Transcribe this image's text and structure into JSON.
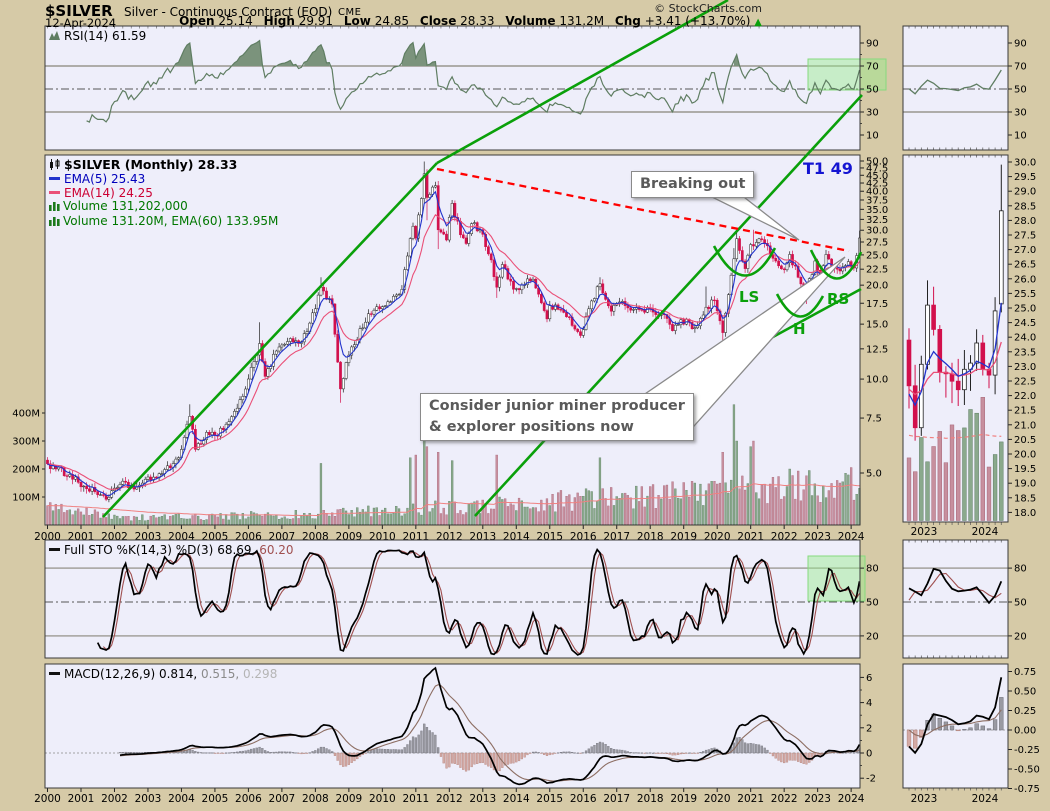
{
  "header": {
    "symbol": "$SILVER",
    "name": "Silver - Continuous Contract (EOD)",
    "exchange": "CME",
    "date": "12-Apr-2024",
    "copyright": "© StockCharts.com",
    "quote": {
      "open_label": "Open",
      "open": "25.14",
      "high_label": "High",
      "high": "29.91",
      "low_label": "Low",
      "low": "24.85",
      "close_label": "Close",
      "close": "28.33",
      "volume_label": "Volume",
      "volume": "131.2M",
      "chg_label": "Chg",
      "chg": "+3.41 (+13.70%)",
      "chg_icon": "▲"
    }
  },
  "panels": {
    "rsi": {
      "legend": "RSI(14) 61.59",
      "ticks": [
        "90",
        "70",
        "50",
        "30",
        "10"
      ]
    },
    "main": {
      "legend_title": "$SILVER (Monthly) 28.33",
      "legend_ema5": "EMA(5) 25.43",
      "legend_ema14": "EMA(14) 24.25",
      "legend_vol": "Volume 131,202,000",
      "legend_vol_ema": "Volume 131.20M, EMA(60) 133.95M",
      "price_ticks": [
        "50.0",
        "47.5",
        "45.0",
        "42.5",
        "40.0",
        "37.5",
        "35.0",
        "32.5",
        "30.0",
        "27.5",
        "25.0",
        "22.5",
        "20.0",
        "17.5",
        "15.0",
        "12.5",
        "10.0",
        "7.5",
        "5.0"
      ],
      "volume_ticks": [
        "400M",
        "300M",
        "200M",
        "100M"
      ],
      "years": [
        "2000",
        "2001",
        "2002",
        "2003",
        "2004",
        "2005",
        "2006",
        "2007",
        "2008",
        "2009",
        "2010",
        "2011",
        "2012",
        "2013",
        "2014",
        "2015",
        "2016",
        "2017",
        "2018",
        "2019",
        "2020",
        "2021",
        "2022",
        "2023",
        "2024"
      ]
    },
    "sto": {
      "legend_label": "Full STO %K(14,3) %D(3)",
      "k_value": "68.69,",
      "d_value": "60.20",
      "ticks": [
        "80",
        "50",
        "20"
      ]
    },
    "macd": {
      "legend_label": "MACD(12,26,9)",
      "macd_value": "0.814,",
      "signal_value": "0.515,",
      "hist_value": "0.298",
      "ticks": [
        "6",
        "4",
        "2",
        "0",
        "-2"
      ]
    }
  },
  "mini": {
    "rsi_ticks": [
      "90",
      "70",
      "50",
      "30",
      "10"
    ],
    "price_ticks": [
      "30.0",
      "29.5",
      "29.0",
      "28.5",
      "28.0",
      "27.5",
      "27.0",
      "26.5",
      "26.0",
      "25.5",
      "25.0",
      "24.5",
      "24.0",
      "23.5",
      "23.0",
      "22.5",
      "22.0",
      "21.5",
      "21.0",
      "20.5",
      "20.0",
      "19.5",
      "19.0",
      "18.5",
      "18.0"
    ],
    "sto_ticks": [
      "80",
      "50",
      "20"
    ],
    "macd_ticks": [
      "0.75",
      "0.50",
      "0.25",
      "0.00",
      "-0.25",
      "-0.50",
      "-0.75"
    ],
    "years": [
      "2023",
      "2024"
    ]
  },
  "annotations": {
    "breakout": "Breaking out",
    "target": "T1 49",
    "consider_line1": "Consider junior miner producer",
    "consider_line2": "& explorer positions now",
    "ls": "LS",
    "h": "H",
    "rs": "RS"
  },
  "colors": {
    "background": "#d6caa7",
    "panel": "#eeeefa",
    "border": "#3a3a3a",
    "candle_down": "#d2104c",
    "candle_up": "#ffffff",
    "ema5": "#2233cc",
    "ema14": "#ea4f77",
    "vol_up": "#8aa98c",
    "vol_down": "#c78f9e",
    "vol_ema": "#f08080",
    "rsi_line": "#5f7d62",
    "sto_d": "#a05050",
    "macd_signal": "#8d6e63",
    "annotation_green": "#0aa00a",
    "annotation_red": "#ff0000",
    "target_blue": "#1414d2",
    "highlight_fill": "rgba(150,235,140,0.45)",
    "highlight_stroke": "#86d97e"
  },
  "chart_data": {
    "type": "candlestick",
    "symbol": "$SILVER",
    "timeframe": "monthly",
    "start": "2000-01",
    "end": "2024-04",
    "price_scale": "log",
    "price_axis_range": [
      5.0,
      50.0
    ],
    "volume_axis_range_millions": [
      0,
      400
    ],
    "last_bar": {
      "open": 25.14,
      "high": 29.91,
      "low": 24.85,
      "close": 28.33,
      "volume_millions": 131.2
    },
    "indicator_readouts": {
      "rsi14": 61.59,
      "ema5": 25.43,
      "ema14": 24.25,
      "sto_k": 68.69,
      "sto_d": 60.2,
      "macd": 0.814,
      "macd_signal": 0.515,
      "macd_hist": 0.298,
      "volume": "131,202,000",
      "volume_ema60": "133.95M"
    },
    "monthly_close_anchors": [
      [
        0,
        5.35
      ],
      [
        3,
        5.15
      ],
      [
        8,
        4.95
      ],
      [
        14,
        4.45
      ],
      [
        22,
        4.18,
        0,
        4.03
      ],
      [
        26,
        4.6
      ],
      [
        32,
        4.5
      ],
      [
        38,
        4.85
      ],
      [
        44,
        5.2
      ],
      [
        48,
        5.95
      ],
      [
        51,
        7.6,
        8.3,
        0
      ],
      [
        53,
        5.95
      ],
      [
        57,
        6.75
      ],
      [
        60,
        6.6
      ],
      [
        65,
        7.3
      ],
      [
        70,
        8.8
      ],
      [
        76,
        13.0,
        15.2,
        0
      ],
      [
        78,
        10.2
      ],
      [
        82,
        12.3
      ],
      [
        86,
        13.2
      ],
      [
        90,
        13.0
      ],
      [
        93,
        14.2
      ],
      [
        96,
        16.8
      ],
      [
        98,
        19.7,
        21.2,
        0
      ],
      [
        102,
        17.4
      ],
      [
        105,
        9.3,
        0,
        8.4
      ],
      [
        107,
        11.3
      ],
      [
        110,
        12.9
      ],
      [
        115,
        16.2
      ],
      [
        119,
        16.8
      ],
      [
        123,
        17.7
      ],
      [
        125,
        18.6
      ],
      [
        127,
        19.4
      ],
      [
        130,
        28.2
      ],
      [
        131,
        30.9
      ],
      [
        132,
        28.3
      ],
      [
        134,
        37.9
      ],
      [
        135,
        45.5,
        49.8,
        0
      ],
      [
        136,
        38.2,
        0,
        32.3
      ],
      [
        139,
        41.7
      ],
      [
        140,
        30.1,
        0,
        26.1
      ],
      [
        143,
        27.9
      ],
      [
        144,
        33.0
      ],
      [
        145,
        36.6,
        37.5,
        0
      ],
      [
        148,
        29.0
      ],
      [
        150,
        27.2
      ],
      [
        152,
        31.5
      ],
      [
        155,
        30.1
      ],
      [
        159,
        24.1
      ],
      [
        161,
        19.7,
        0,
        18.2
      ],
      [
        163,
        23.3
      ],
      [
        167,
        19.4
      ],
      [
        170,
        20.0
      ],
      [
        174,
        20.9
      ],
      [
        179,
        15.6
      ],
      [
        180,
        17.2
      ],
      [
        184,
        16.7
      ],
      [
        191,
        13.8,
        0,
        13.55
      ],
      [
        195,
        17.8
      ],
      [
        198,
        20.2,
        21.2,
        0
      ],
      [
        202,
        16.5
      ],
      [
        204,
        17.5
      ],
      [
        207,
        17.2
      ],
      [
        212,
        16.7
      ],
      [
        215,
        16.9
      ],
      [
        217,
        16.4
      ],
      [
        221,
        16.1
      ],
      [
        224,
        14.3
      ],
      [
        227,
        15.5
      ],
      [
        232,
        14.6
      ],
      [
        236,
        17.0,
        19.8,
        0
      ],
      [
        239,
        17.9
      ],
      [
        242,
        14.1,
        0,
        11.6
      ],
      [
        246,
        24.3,
        26.3,
        0
      ],
      [
        247,
        28.2,
        29.9,
        0
      ],
      [
        250,
        22.6
      ],
      [
        252,
        27.0
      ],
      [
        253,
        26.7,
        30.1,
        0
      ],
      [
        256,
        28.0
      ],
      [
        261,
        23.9
      ],
      [
        264,
        22.4
      ],
      [
        266,
        25.1
      ],
      [
        270,
        20.2
      ],
      [
        272,
        19.0,
        0,
        17.4
      ],
      [
        275,
        23.9
      ],
      [
        277,
        20.9
      ],
      [
        279,
        25.1
      ],
      [
        281,
        22.8
      ],
      [
        284,
        22.2
      ],
      [
        285,
        22.9
      ],
      [
        287,
        23.8
      ],
      [
        288,
        22.9
      ],
      [
        289,
        22.7
      ],
      [
        290,
        24.9
      ],
      [
        291,
        28.33,
        29.91,
        24.85
      ]
    ],
    "volume_spikes_millions": {
      "98": 220,
      "130": 240,
      "132": 250,
      "135": 310,
      "136": 280,
      "140": 260,
      "145": 230,
      "161": 250,
      "198": 240,
      "242": 260,
      "246": 430,
      "247": 300,
      "252": 280,
      "253": 300,
      "266": 200,
      "290": 110,
      "291": 131
    },
    "mini_start_month": 276
  }
}
